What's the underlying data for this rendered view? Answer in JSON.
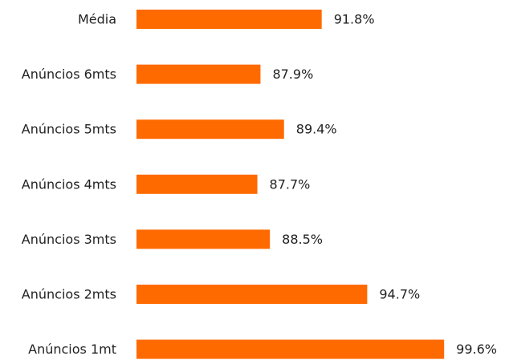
{
  "chart_data": {
    "type": "hbar",
    "categories": [
      "Média",
      "Anúncios 6mts",
      "Anúncios 5mts",
      "Anúncios 4mts",
      "Anúncios 3mts",
      "Anúncios 2mts",
      "Anúncios 1mt"
    ],
    "values": [
      91.8,
      87.9,
      89.4,
      87.7,
      88.5,
      94.7,
      99.6
    ],
    "value_labels": [
      "91.8%",
      "87.9%",
      "89.4%",
      "87.7%",
      "88.5%",
      "94.7%",
      "99.6%"
    ],
    "color": "#ff6a00",
    "xlim": [
      80,
      100
    ]
  }
}
